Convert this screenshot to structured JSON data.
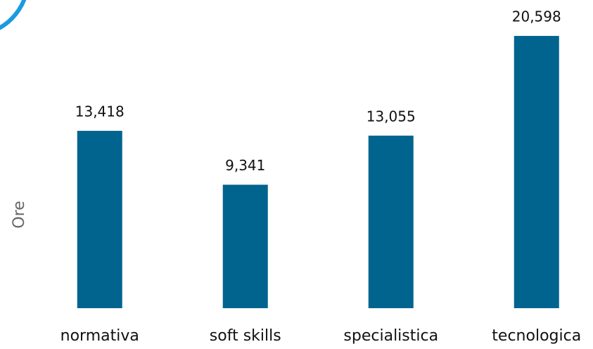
{
  "chart_data": {
    "type": "bar",
    "y_label": "Ore",
    "categories": [
      "normativa",
      "soft skills",
      "specialistica",
      "tecnologica"
    ],
    "values": [
      13418,
      9341,
      13055,
      20598
    ],
    "value_labels": [
      "13,418",
      "9,341",
      "13,055",
      "20,598"
    ],
    "color": "#00648f",
    "ylim": [
      0,
      21000
    ]
  }
}
